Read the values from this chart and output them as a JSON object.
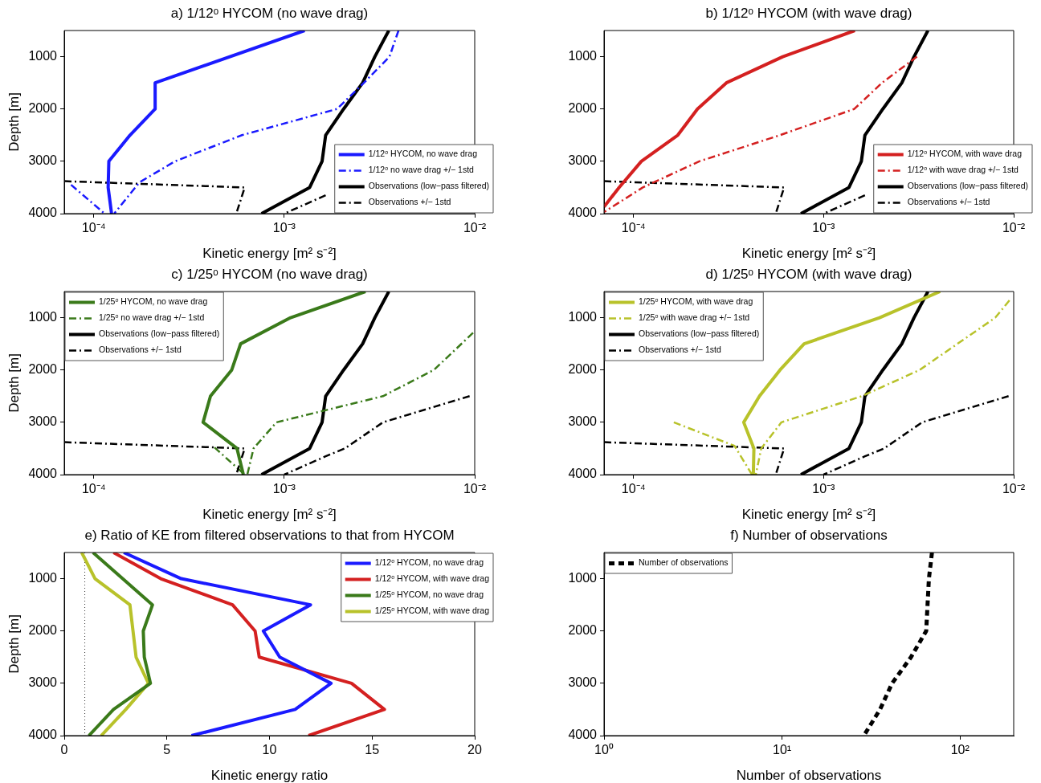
{
  "chart_data": [
    {
      "type": "line",
      "title": "a) 1/12ᵒ HYCOM (no wave drag)",
      "xlabel": "Kinetic energy [m² s⁻²]",
      "ylabel": "Depth [m]",
      "log": "x",
      "grid": false,
      "legend": "bottom right",
      "xlim": [
        7e-05,
        0.01
      ],
      "xticks": [
        {
          "value": 0.0001,
          "label": "10⁻⁴"
        },
        {
          "value": 0.001,
          "label": "10⁻³"
        },
        {
          "value": 0.01,
          "label": "10⁻²"
        }
      ],
      "ylim": [
        4000,
        500
      ],
      "yticks": [
        1000,
        2000,
        3000,
        4000
      ],
      "series": [
        {
          "name": "1/12ᵒ HYCOM, no wave drag",
          "color": "#1a1aff",
          "line_style": "solid",
          "x": [
            0.00128,
            0.00021,
            0.00021,
            0.000155,
            0.00012,
            0.000119,
            0.000124
          ],
          "values": [
            500,
            1500,
            2000,
            2500,
            3000,
            3500,
            4000
          ]
        },
        {
          "name": "1/12ᵒ no wave drag +/− 1std",
          "color": "#1a1aff",
          "line_style": "dashdot",
          "x": [
            0.00398,
            0.00357,
            0.00262,
            0.00189,
            0.0006,
            0.000267,
            0.000174,
            0.000128
          ],
          "values": [
            500,
            1000,
            1500,
            2000,
            2500,
            3000,
            3400,
            4000
          ]
        },
        {
          "name": "Observations (low−pass filtered)",
          "color": "#000000",
          "line_style": "solid",
          "x": [
            0.00354,
            0.00299,
            0.00258,
            0.00205,
            0.00165,
            0.00158,
            0.00136,
            0.00076
          ],
          "values": [
            500,
            1000,
            1500,
            2000,
            2500,
            3000,
            3500,
            4000
          ]
        },
        {
          "name": "Observations +/− 1std",
          "color": "#000000",
          "line_style": "dashdot",
          "x": [
            7e-05,
            0.00062,
            0.00056
          ],
          "values": [
            3380,
            3500,
            4000
          ]
        },
        {
          "color": "#1a1aff",
          "line_style": "dashdot",
          "x": [
            7.6e-05,
            0.000114
          ],
          "values": [
            3450,
            4000
          ]
        },
        {
          "color": "#000000",
          "line_style": "dashdot",
          "x": [
            0.00165,
            0.001
          ],
          "values": [
            3650,
            4000
          ]
        }
      ]
    },
    {
      "type": "line",
      "title": "b) 1/12ᵒ HYCOM (with wave drag)",
      "xlabel": "Kinetic energy [m² s⁻²]",
      "log": "x",
      "grid": false,
      "legend": "bottom right",
      "xlim": [
        7e-05,
        0.01
      ],
      "xticks": [
        {
          "value": 0.0001,
          "label": "10⁻⁴"
        },
        {
          "value": 0.001,
          "label": "10⁻³"
        },
        {
          "value": 0.01,
          "label": "10⁻²"
        }
      ],
      "ylim": [
        4000,
        500
      ],
      "yticks": [
        1000,
        2000,
        3000,
        4000
      ],
      "series": [
        {
          "name": "1/12ᵒ HYCOM, with wave drag",
          "color": "#d42020",
          "line_style": "solid",
          "x": [
            0.00146,
            0.00061,
            0.000308,
            0.000217,
            0.000171,
            0.00011,
            8.4e-05,
            7e-05
          ],
          "values": [
            500,
            1000,
            1500,
            2000,
            2500,
            3000,
            3500,
            3870
          ]
        },
        {
          "name": "1/12ᵒ with wave drag +/− 1std",
          "color": "#d42020",
          "line_style": "dashdot",
          "x": [
            0.0031,
            0.00203,
            0.00145,
            0.00059,
            0.000222,
            0.000112,
            7e-05
          ],
          "values": [
            1000,
            1500,
            2000,
            2500,
            3000,
            3500,
            3970
          ]
        },
        {
          "name": "Observations (low−pass filtered)",
          "color": "#000000",
          "line_style": "solid",
          "x": [
            0.00354,
            0.00299,
            0.00258,
            0.00205,
            0.00165,
            0.00158,
            0.00136,
            0.00076
          ],
          "values": [
            500,
            1000,
            1500,
            2000,
            2500,
            3000,
            3500,
            4000
          ]
        },
        {
          "name": "Observations +/− 1std",
          "color": "#000000",
          "line_style": "dashdot",
          "x": [
            7e-05,
            0.00062,
            0.00056
          ],
          "values": [
            3380,
            3500,
            4000
          ]
        },
        {
          "color": "#000000",
          "line_style": "dashdot",
          "x": [
            0.00165,
            0.001
          ],
          "values": [
            3650,
            4000
          ]
        }
      ]
    },
    {
      "type": "line",
      "title": "c) 1/25ᵒ HYCOM (no wave drag)",
      "xlabel": "Kinetic energy [m² s⁻²]",
      "ylabel": "Depth [m]",
      "log": "x",
      "grid": false,
      "legend": "top left",
      "xlim": [
        7e-05,
        0.01
      ],
      "xticks": [
        {
          "value": 0.0001,
          "label": "10⁻⁴"
        },
        {
          "value": 0.001,
          "label": "10⁻³"
        },
        {
          "value": 0.01,
          "label": "10⁻²"
        }
      ],
      "ylim": [
        4000,
        500
      ],
      "yticks": [
        1000,
        2000,
        3000,
        4000
      ],
      "series": [
        {
          "name": "1/25ᵒ HYCOM, no wave drag",
          "color": "#3a7a1a",
          "line_style": "solid",
          "x": [
            0.00267,
            0.00108,
            0.00059,
            0.00053,
            0.00041,
            0.000375,
            0.000565,
            0.00061
          ],
          "values": [
            500,
            1000,
            1500,
            2000,
            2500,
            3000,
            3500,
            4000
          ]
        },
        {
          "name": "1/25ᵒ no wave drag +/− 1std",
          "color": "#3a7a1a",
          "line_style": "dashdot",
          "x": [
            0.0098,
            0.0061,
            0.0033,
            0.00091,
            0.00069,
            0.00064
          ],
          "values": [
            1290,
            2000,
            2500,
            3000,
            3500,
            4000
          ]
        },
        {
          "name": "Observations (low−pass filtered)",
          "color": "#000000",
          "line_style": "solid",
          "x": [
            0.00354,
            0.00299,
            0.00258,
            0.00205,
            0.00165,
            0.00158,
            0.00136,
            0.00076
          ],
          "values": [
            500,
            1000,
            1500,
            2000,
            2500,
            3000,
            3500,
            4000
          ]
        },
        {
          "name": "Observations +/− 1std",
          "color": "#000000",
          "line_style": "dashdot",
          "x": [
            7e-05,
            0.00062,
            0.00056
          ],
          "values": [
            3380,
            3500,
            4000
          ]
        },
        {
          "color": "#3a7a1a",
          "line_style": "dashdot",
          "x": [
            0.00043,
            0.00062
          ],
          "values": [
            3480,
            4000
          ]
        },
        {
          "color": "#000000",
          "line_style": "dashdot",
          "x": [
            0.0094,
            0.0033,
            0.00262,
            0.00208,
            0.00165,
            0.001
          ],
          "values": [
            2500,
            3000,
            3250,
            3500,
            3650,
            4000
          ]
        }
      ]
    },
    {
      "type": "line",
      "title": "d) 1/25ᵒ HYCOM (with wave drag)",
      "xlabel": "Kinetic energy [m² s⁻²]",
      "log": "x",
      "grid": false,
      "legend": "top left",
      "xlim": [
        7e-05,
        0.01
      ],
      "xticks": [
        {
          "value": 0.0001,
          "label": "10⁻⁴"
        },
        {
          "value": 0.001,
          "label": "10⁻³"
        },
        {
          "value": 0.01,
          "label": "10⁻²"
        }
      ],
      "ylim": [
        4000,
        500
      ],
      "yticks": [
        1000,
        2000,
        3000,
        4000
      ],
      "series": [
        {
          "name": "1/25ᵒ HYCOM, with wave drag",
          "color": "#b8c22a",
          "line_style": "solid",
          "x": [
            0.0041,
            0.00197,
            0.00079,
            0.00059,
            0.00046,
            0.00038,
            0.00043,
            0.000427
          ],
          "values": [
            500,
            1000,
            1500,
            2000,
            2500,
            3000,
            3500,
            4000
          ]
        },
        {
          "name": "1/25ᵒ with wave drag +/− 1std",
          "color": "#b8c22a",
          "line_style": "dashdot",
          "x": [
            0.0095,
            0.008,
            0.0032,
            0.00159,
            0.0006,
            0.00047,
            0.00044
          ],
          "values": [
            670,
            1000,
            2000,
            2500,
            3000,
            3500,
            4000
          ]
        },
        {
          "name": "Observations (low−pass filtered)",
          "color": "#000000",
          "line_style": "solid",
          "x": [
            0.00354,
            0.00299,
            0.00258,
            0.00205,
            0.00165,
            0.00158,
            0.00136,
            0.00076
          ],
          "values": [
            500,
            1000,
            1500,
            2000,
            2500,
            3000,
            3500,
            4000
          ]
        },
        {
          "name": "Observations +/− 1std",
          "color": "#000000",
          "line_style": "dashdot",
          "x": [
            7e-05,
            0.00062,
            0.00056
          ],
          "values": [
            3380,
            3500,
            4000
          ]
        },
        {
          "color": "#b8c22a",
          "line_style": "dashdot",
          "x": [
            0.000163,
            0.00034,
            0.00042
          ],
          "values": [
            3000,
            3450,
            4000
          ]
        },
        {
          "color": "#000000",
          "line_style": "dashdot",
          "x": [
            0.0094,
            0.0033,
            0.00262,
            0.00208,
            0.00165,
            0.001
          ],
          "values": [
            2500,
            3000,
            3250,
            3500,
            3650,
            4000
          ]
        }
      ]
    },
    {
      "type": "line",
      "title": "e) Ratio of KE from filtered observations to that from HYCOM",
      "xlabel": "Kinetic energy ratio",
      "ylabel": "Depth [m]",
      "grid": false,
      "legend": "top right",
      "xlim": [
        0,
        20
      ],
      "xticks": [
        0,
        5,
        10,
        15,
        20
      ],
      "ylim": [
        4000,
        500
      ],
      "yticks": [
        1000,
        2000,
        3000,
        4000
      ],
      "ref_lines": [
        {
          "axis": "x",
          "value": 1,
          "color": "#000000",
          "line_style": "dotted"
        }
      ],
      "series": [
        {
          "name": "1/12ᵒ HYCOM, no wave drag",
          "color": "#1a1aff",
          "line_style": "solid",
          "x": [
            2.9,
            5.7,
            12.0,
            9.7,
            10.5,
            13.0,
            11.25,
            6.2
          ],
          "values": [
            500,
            1000,
            1500,
            2000,
            2500,
            3000,
            3500,
            4000
          ]
        },
        {
          "name": "1/12ᵒ HYCOM, with wave drag",
          "color": "#d42020",
          "line_style": "solid",
          "x": [
            2.4,
            4.7,
            8.2,
            9.3,
            9.5,
            14.0,
            15.6,
            11.9
          ],
          "values": [
            500,
            1000,
            1500,
            2000,
            2500,
            3000,
            3500,
            4000
          ]
        },
        {
          "name": "1/25ᵒ HYCOM, no wave drag",
          "color": "#3a7a1a",
          "line_style": "solid",
          "x": [
            1.4,
            4.3,
            3.85,
            3.9,
            4.2,
            2.4,
            1.2
          ],
          "values": [
            500,
            1500,
            2000,
            2500,
            3000,
            3500,
            4000
          ]
        },
        {
          "name": "1/25ᵒ HYCOM, with wave drag",
          "color": "#b8c22a",
          "line_style": "solid",
          "x": [
            0.85,
            1.5,
            3.2,
            3.35,
            3.5,
            4.1,
            3.0,
            1.8
          ],
          "values": [
            500,
            1000,
            1500,
            2000,
            2500,
            3000,
            3500,
            4000
          ]
        }
      ]
    },
    {
      "type": "line",
      "title": "f) Number of observations",
      "xlabel": "Number of observations",
      "log": "x",
      "grid": false,
      "legend": "top left",
      "xlim": [
        1,
        200
      ],
      "xticks": [
        {
          "value": 1,
          "label": "10⁰"
        },
        {
          "value": 10,
          "label": "10¹"
        },
        {
          "value": 100,
          "label": "10²"
        }
      ],
      "ylim": [
        4000,
        500
      ],
      "yticks": [
        1000,
        2000,
        3000,
        4000
      ],
      "series": [
        {
          "name": "Number of observations",
          "color": "#000000",
          "line_style": "dashed",
          "x": [
            69.5,
            66.8,
            64.5,
            53,
            41.5,
            35.5,
            28.8
          ],
          "values": [
            500,
            1000,
            2000,
            2500,
            3000,
            3500,
            4000
          ]
        }
      ]
    }
  ]
}
